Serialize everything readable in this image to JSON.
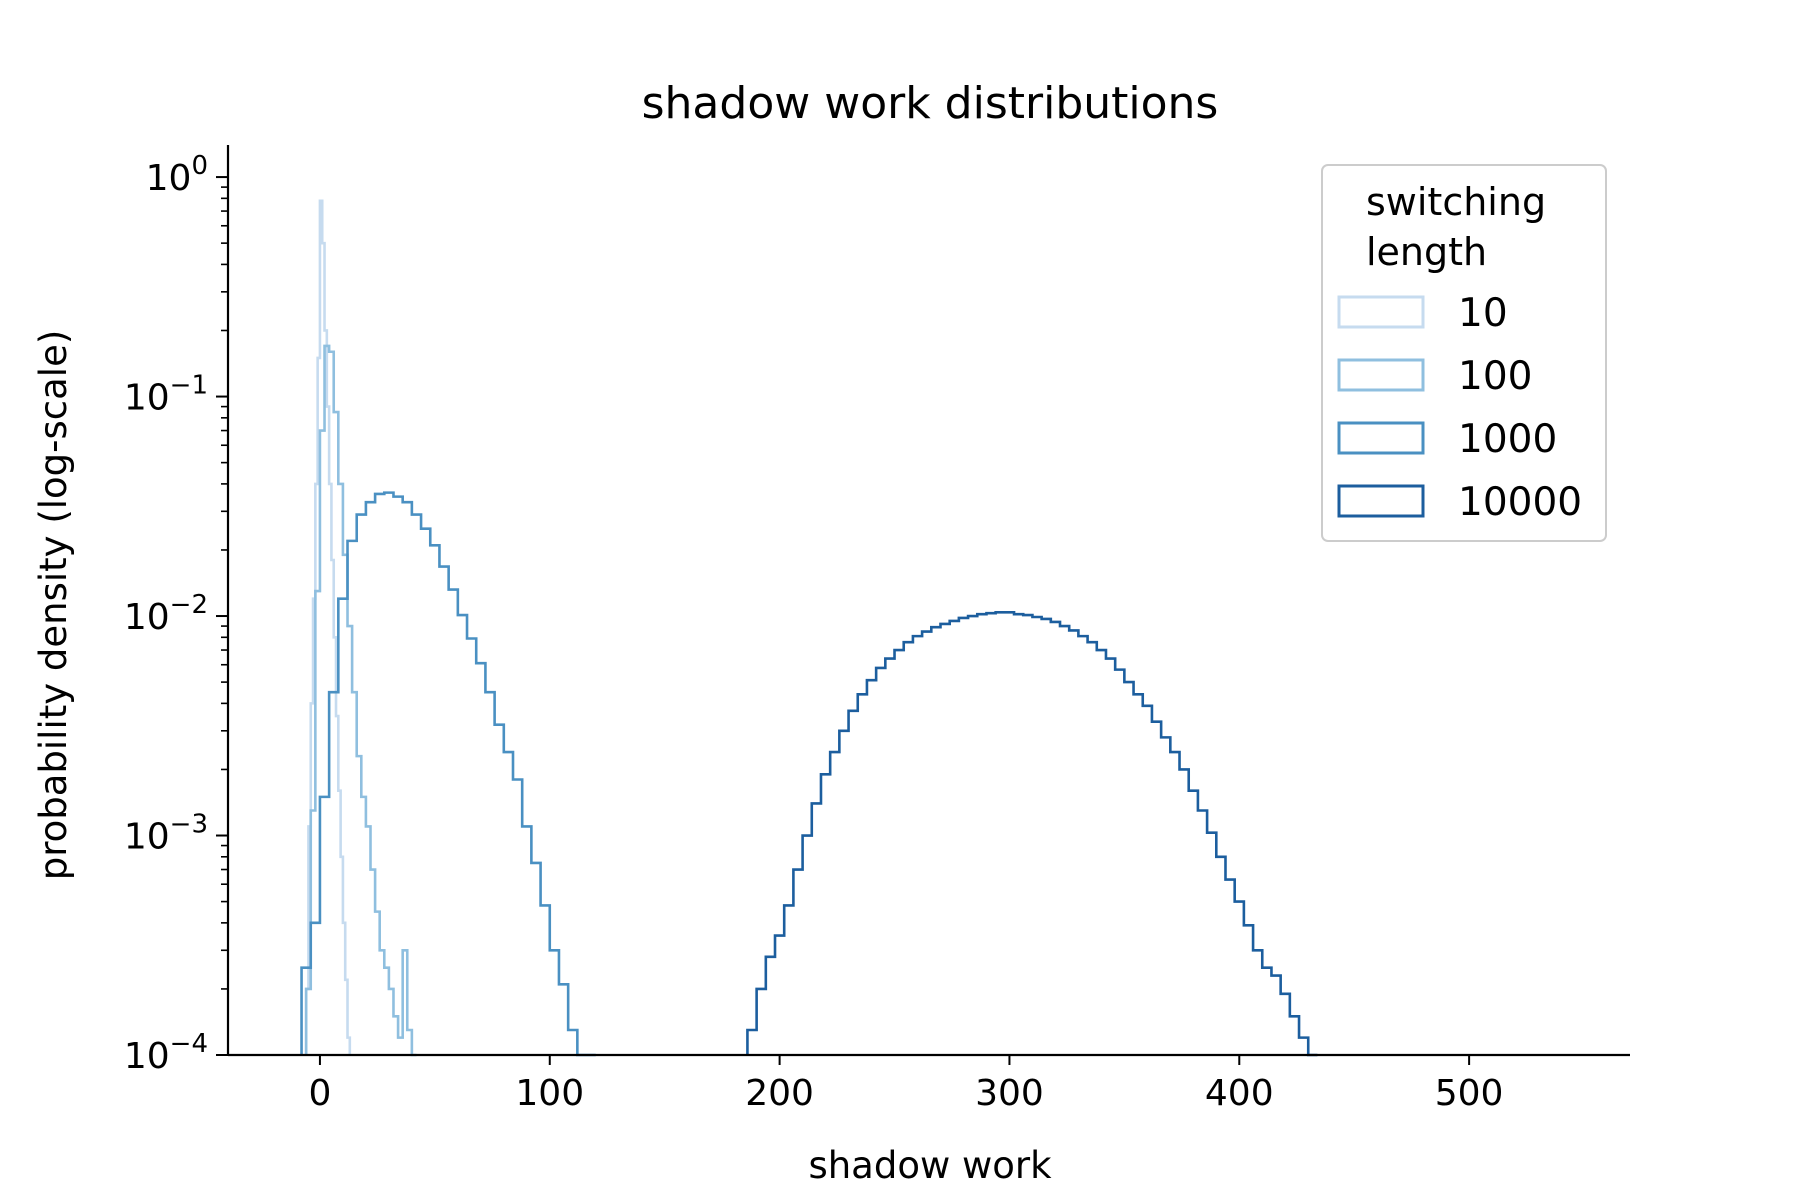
{
  "chart_data": {
    "type": "histogram",
    "title": "shadow work distributions",
    "xlabel": "shadow work",
    "ylabel": "probability density (log-scale)",
    "xlim": [
      -40,
      570
    ],
    "ylim": [
      0.0001,
      1.4
    ],
    "yscale": "log",
    "xticks": [
      0,
      100,
      200,
      300,
      400,
      500
    ],
    "xtick_labels": [
      "0",
      "100",
      "200",
      "300",
      "400",
      "500"
    ],
    "yticks": [
      {
        "value": 1,
        "base": "10",
        "exp": "0"
      },
      {
        "value": 0.1,
        "base": "10",
        "exp": "−1"
      },
      {
        "value": 0.01,
        "base": "10",
        "exp": "−2"
      },
      {
        "value": 0.001,
        "base": "10",
        "exp": "−3"
      },
      {
        "value": 0.0001,
        "base": "10",
        "exp": "−4"
      }
    ],
    "grid": false,
    "legend": {
      "title_lines": [
        "switching",
        "length"
      ],
      "position": "top-right"
    },
    "series": [
      {
        "name": "10",
        "color": "#c6dbef",
        "bin_width": 1,
        "x_start": -6,
        "density": [
          0.0002,
          0.0011,
          0.004,
          0.012,
          0.04,
          0.15,
          0.78,
          0.5,
          0.2,
          0.09,
          0.04,
          0.018,
          0.008,
          0.0035,
          0.0016,
          0.0008,
          0.0004,
          0.00022,
          0.00012
        ]
      },
      {
        "name": "100",
        "color": "#8fbfdf",
        "bin_width": 2,
        "x_start": -6,
        "density": [
          0.0002,
          0.0013,
          0.013,
          0.07,
          0.17,
          0.16,
          0.085,
          0.04,
          0.019,
          0.009,
          0.0045,
          0.0023,
          0.0015,
          0.0011,
          0.0007,
          0.00045,
          0.0003,
          0.00025,
          0.0002,
          0.00015,
          0.00012,
          0.0003,
          0.00013,
          0.0001
        ]
      },
      {
        "name": "1000",
        "color": "#4a90c2",
        "bin_width": 4,
        "x_start": -8,
        "density": [
          0.00025,
          0.0004,
          0.0015,
          0.0045,
          0.012,
          0.022,
          0.029,
          0.033,
          0.036,
          0.0365,
          0.035,
          0.033,
          0.029,
          0.025,
          0.021,
          0.0168,
          0.0132,
          0.0101,
          0.0079,
          0.0061,
          0.0045,
          0.0032,
          0.0024,
          0.0018,
          0.0011,
          0.00075,
          0.00048,
          0.0003,
          0.00021,
          0.00013,
          0.0001,
          0.0001
        ]
      },
      {
        "name": "10000",
        "color": "#1c5e9e",
        "bin_width": 4,
        "x_start": 186,
        "density": [
          0.00013,
          0.0002,
          0.00028,
          0.00035,
          0.00048,
          0.0007,
          0.001,
          0.0014,
          0.0019,
          0.0024,
          0.003,
          0.0037,
          0.0044,
          0.0051,
          0.0058,
          0.0064,
          0.007,
          0.0076,
          0.0081,
          0.0085,
          0.0089,
          0.0092,
          0.0095,
          0.0098,
          0.01,
          0.0102,
          0.0103,
          0.0104,
          0.0104,
          0.0102,
          0.0101,
          0.0099,
          0.0097,
          0.0094,
          0.009,
          0.0086,
          0.0081,
          0.0076,
          0.007,
          0.0064,
          0.0057,
          0.005,
          0.0044,
          0.0039,
          0.0033,
          0.0028,
          0.0024,
          0.002,
          0.0016,
          0.0013,
          0.00103,
          0.0008,
          0.00063,
          0.0005,
          0.00039,
          0.0003,
          0.00025,
          0.00023,
          0.00019,
          0.00015,
          0.00012,
          0.0001
        ]
      }
    ]
  }
}
